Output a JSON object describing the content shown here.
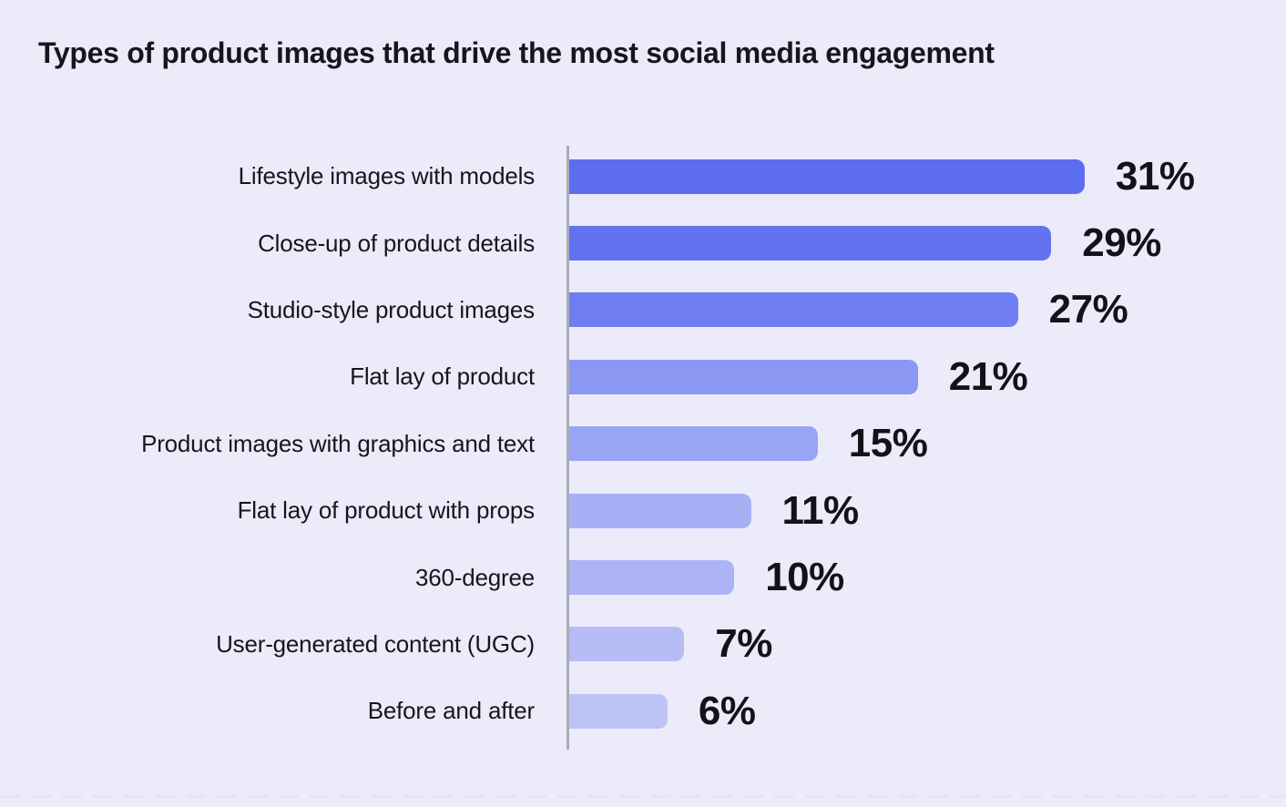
{
  "page": {
    "background": "#EBEBFA",
    "text_color": "#16161E",
    "axis_line_color": "#A9ABB8"
  },
  "title": "Types of product images that drive the most social media engagement",
  "chart_data": {
    "type": "bar",
    "orientation": "horizontal",
    "title": "Types of product images that drive the most social media engagement",
    "xlabel": "",
    "ylabel": "",
    "xlim": [
      0,
      33
    ],
    "grid": false,
    "legend": false,
    "value_suffix": "%",
    "categories": [
      "Lifestyle images with models",
      "Close-up of product details",
      "Studio-style product images",
      "Flat lay of product",
      "Product images with graphics and text",
      "Flat lay of product with props",
      "360-degree",
      "User-generated content (UGC)",
      "Before and after"
    ],
    "values": [
      31,
      29,
      27,
      21,
      15,
      11,
      10,
      7,
      6
    ],
    "value_labels": [
      "31%",
      "29%",
      "27%",
      "21%",
      "15%",
      "11%",
      "10%",
      "7%",
      "6%"
    ],
    "bar_colors": [
      "#5C6DEF",
      "#6273F0",
      "#6F7EF1",
      "#8A97F3",
      "#9AA4F4",
      "#A8B0F5",
      "#ADB4F5",
      "#B6BCF6",
      "#BDC3F6"
    ]
  }
}
